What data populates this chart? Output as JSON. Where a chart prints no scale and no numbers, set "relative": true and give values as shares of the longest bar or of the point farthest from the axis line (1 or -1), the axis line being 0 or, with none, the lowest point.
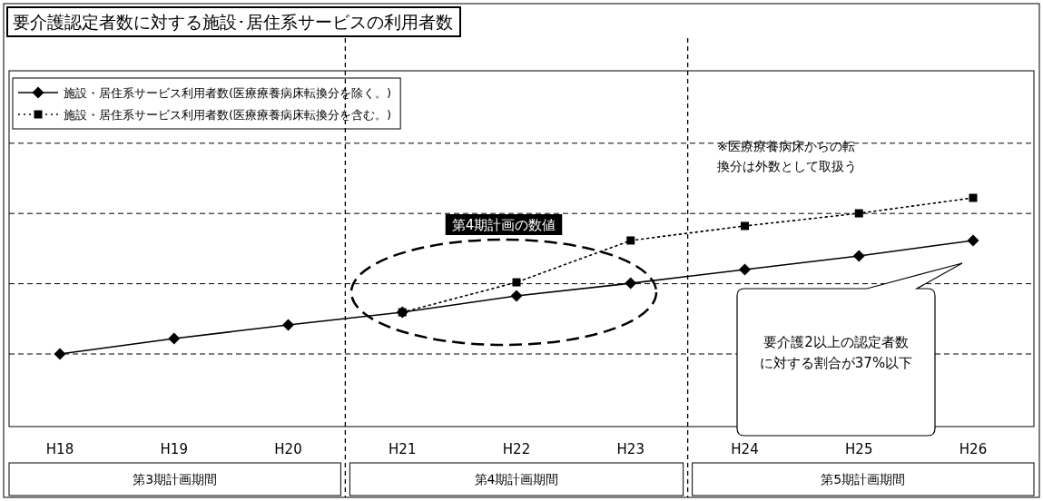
{
  "chart_data": {
    "type": "line",
    "title": "要介護認定者数に対する施設･居住系サービスの利用者数",
    "categories": [
      "H18",
      "H19",
      "H20",
      "H21",
      "H22",
      "H23",
      "H24",
      "H25",
      "H26"
    ],
    "relative": true,
    "legend": "top left",
    "series": [
      {
        "name": "施設・居住系サービス利用者数(医療療養病床転換分を除く。)",
        "color": "#000000",
        "marker": "diamond",
        "line_style": "solid",
        "values": [
          0,
          0.099,
          0.186,
          0.267,
          0.372,
          0.453,
          0.541,
          0.628,
          0.727
        ]
      },
      {
        "name": "施設・居住系サービス利用者数(医療療養病床転換分を含む。)",
        "color": "#000000",
        "marker": "square",
        "line_style": "dotted",
        "values": [
          null,
          null,
          null,
          0.267,
          0.459,
          0.727,
          0.82,
          0.901,
          1
        ]
      }
    ],
    "ref_lines": [
      {
        "axis": "y",
        "value": 0,
        "line_style": "dashed",
        "color": "#000000"
      },
      {
        "axis": "y",
        "value": 0.45,
        "line_style": "dashed",
        "color": "#000000"
      },
      {
        "axis": "y",
        "value": 0.9,
        "line_style": "dashed",
        "color": "#000000"
      },
      {
        "axis": "y",
        "value": 1.35,
        "line_style": "dashed",
        "color": "#000000"
      }
    ],
    "annotations": [
      "第4期計画の数値",
      "※医療療養病床からの転換分は外数として取扱う",
      "要介護2以上の認定者数に対する割合が37%以下",
      "第3期計画期間",
      "第4期計画期間",
      "第5期計画期間"
    ]
  }
}
